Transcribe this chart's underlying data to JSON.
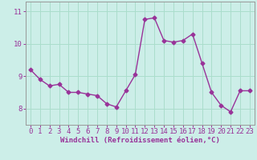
{
  "x": [
    0,
    1,
    2,
    3,
    4,
    5,
    6,
    7,
    8,
    9,
    10,
    11,
    12,
    13,
    14,
    15,
    16,
    17,
    18,
    19,
    20,
    21,
    22,
    23
  ],
  "y": [
    9.2,
    8.9,
    8.7,
    8.75,
    8.5,
    8.5,
    8.45,
    8.4,
    8.15,
    8.05,
    8.55,
    9.05,
    10.75,
    10.8,
    10.1,
    10.05,
    10.1,
    10.3,
    9.4,
    8.5,
    8.1,
    7.9,
    8.55,
    8.55
  ],
  "line_color": "#993399",
  "marker": "D",
  "marker_size": 2.5,
  "bg_color": "#cceee8",
  "grid_color": "#aaddcc",
  "xlabel": "Windchill (Refroidissement éolien,°C)",
  "xlim": [
    -0.5,
    23.5
  ],
  "ylim": [
    7.5,
    11.3
  ],
  "yticks": [
    8,
    9,
    10,
    11
  ],
  "xticks": [
    0,
    1,
    2,
    3,
    4,
    5,
    6,
    7,
    8,
    9,
    10,
    11,
    12,
    13,
    14,
    15,
    16,
    17,
    18,
    19,
    20,
    21,
    22,
    23
  ],
  "xtick_labels": [
    "0",
    "1",
    "2",
    "3",
    "4",
    "5",
    "6",
    "7",
    "8",
    "9",
    "10",
    "11",
    "12",
    "13",
    "14",
    "15",
    "16",
    "17",
    "18",
    "19",
    "20",
    "21",
    "22",
    "23"
  ],
  "tick_color": "#993399",
  "label_color": "#993399",
  "label_fontsize": 6.5,
  "tick_fontsize": 6.5,
  "spine_color": "#999999",
  "linewidth": 1.0
}
